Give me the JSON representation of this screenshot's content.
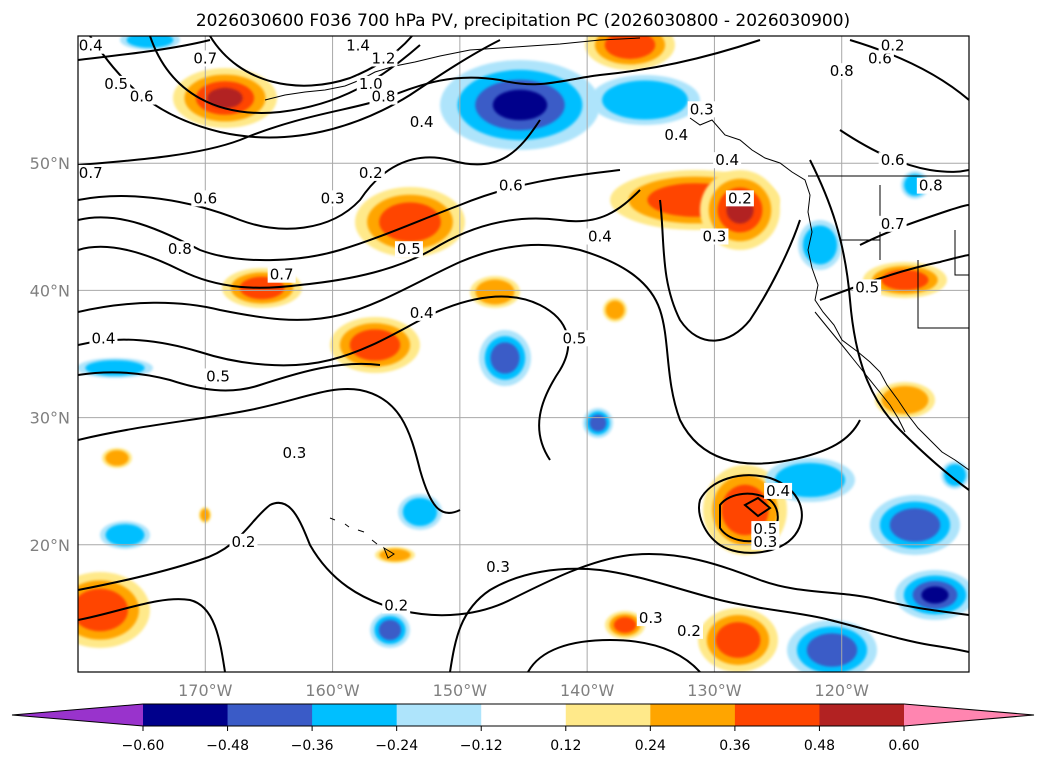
{
  "chart_data": {
    "type": "heatmap",
    "title": "2026030600 F036 700 hPa PV, precipitation PC (2026030800 - 2026030900)",
    "map": {
      "lon_range": [
        -180,
        -110
      ],
      "lat_range": [
        10,
        60
      ],
      "grid": true,
      "x_ticks": [
        {
          "lon": -170,
          "label": "170°W"
        },
        {
          "lon": -160,
          "label": "160°W"
        },
        {
          "lon": -150,
          "label": "150°W"
        },
        {
          "lon": -140,
          "label": "140°W"
        },
        {
          "lon": -130,
          "label": "130°W"
        },
        {
          "lon": -120,
          "label": "120°W"
        }
      ],
      "y_ticks": [
        {
          "lat": 20,
          "label": "20°N"
        },
        {
          "lat": 30,
          "label": "30°N"
        },
        {
          "lat": 40,
          "label": "40°N"
        },
        {
          "lat": 50,
          "label": "50°N"
        }
      ]
    },
    "colorbar": {
      "levels": [
        "−0.60",
        "−0.48",
        "−0.36",
        "−0.24",
        "−0.12",
        "0.12",
        "0.24",
        "0.36",
        "0.48",
        "0.60"
      ],
      "colors": [
        "#9933cc",
        "#00008b",
        "#3a5bc7",
        "#00bfff",
        "#aee4fb",
        "#ffffff",
        "#ffe98a",
        "#ffa500",
        "#ff4500",
        "#b22222",
        "#ff85b0"
      ],
      "extend": "both"
    },
    "pv_contour_labels": [
      {
        "label": "0.4",
        "lon": -179,
        "lat": 59
      },
      {
        "label": "0.5",
        "lon": -177,
        "lat": 56
      },
      {
        "label": "0.7",
        "lon": -170,
        "lat": 58
      },
      {
        "label": "0.6",
        "lon": -175,
        "lat": 55
      },
      {
        "label": "1.4",
        "lon": -158,
        "lat": 59
      },
      {
        "label": "1.2",
        "lon": -156,
        "lat": 58
      },
      {
        "label": "1.0",
        "lon": -157,
        "lat": 56
      },
      {
        "label": "0.8",
        "lon": -156,
        "lat": 55
      },
      {
        "label": "0.4",
        "lon": -153,
        "lat": 53
      },
      {
        "label": "0.7",
        "lon": -179,
        "lat": 49
      },
      {
        "label": "0.6",
        "lon": -170,
        "lat": 47
      },
      {
        "label": "0.8",
        "lon": -172,
        "lat": 43
      },
      {
        "label": "0.2",
        "lon": -157,
        "lat": 49
      },
      {
        "label": "0.3",
        "lon": -160,
        "lat": 47
      },
      {
        "label": "0.6",
        "lon": -146,
        "lat": 48
      },
      {
        "label": "0.3",
        "lon": -131,
        "lat": 54
      },
      {
        "label": "0.4",
        "lon": -133,
        "lat": 52
      },
      {
        "label": "0.4",
        "lon": -129,
        "lat": 50
      },
      {
        "label": "0.2",
        "lon": -128,
        "lat": 47
      },
      {
        "label": "0.3",
        "lon": -130,
        "lat": 44
      },
      {
        "label": "0.8",
        "lon": -120,
        "lat": 57
      },
      {
        "label": "0.6",
        "lon": -117,
        "lat": 58
      },
      {
        "label": "0.2",
        "lon": -116,
        "lat": 59
      },
      {
        "label": "0.6",
        "lon": -116,
        "lat": 50
      },
      {
        "label": "0.8",
        "lon": -113,
        "lat": 48
      },
      {
        "label": "0.7",
        "lon": -116,
        "lat": 45
      },
      {
        "label": "0.5",
        "lon": -118,
        "lat": 40
      },
      {
        "label": "0.4",
        "lon": -139,
        "lat": 44
      },
      {
        "label": "0.5",
        "lon": -154,
        "lat": 43
      },
      {
        "label": "0.7",
        "lon": -164,
        "lat": 41
      },
      {
        "label": "0.4",
        "lon": -153,
        "lat": 38
      },
      {
        "label": "0.5",
        "lon": -141,
        "lat": 36
      },
      {
        "label": "0.4",
        "lon": -178,
        "lat": 36
      },
      {
        "label": "0.5",
        "lon": -169,
        "lat": 33
      },
      {
        "label": "0.3",
        "lon": -163,
        "lat": 27
      },
      {
        "label": "0.2",
        "lon": -167,
        "lat": 20
      },
      {
        "label": "0.3",
        "lon": -147,
        "lat": 18
      },
      {
        "label": "0.2",
        "lon": -155,
        "lat": 15
      },
      {
        "label": "0.3",
        "lon": -135,
        "lat": 14
      },
      {
        "label": "0.2",
        "lon": -132,
        "lat": 13
      },
      {
        "label": "0.4",
        "lon": -125,
        "lat": 24
      },
      {
        "label": "0.5",
        "lon": -126,
        "lat": 21
      },
      {
        "label": "0.3",
        "lon": -126,
        "lat": 20
      }
    ]
  }
}
